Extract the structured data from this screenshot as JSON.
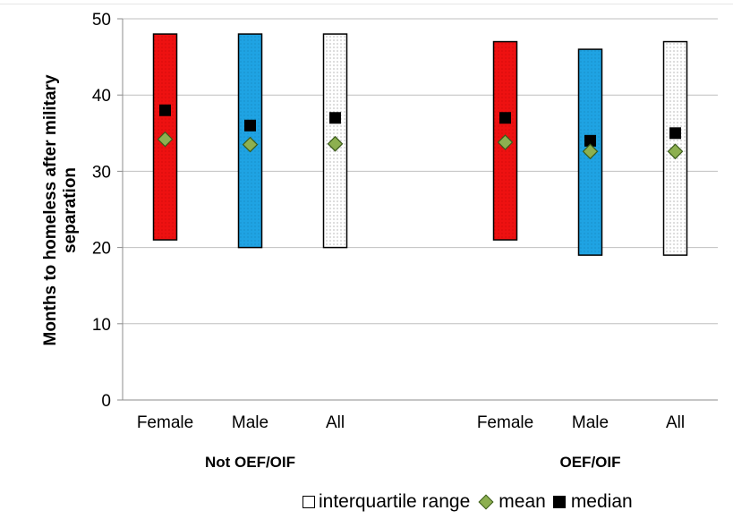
{
  "chart_data": {
    "type": "floating-bar",
    "ylabel_lines": [
      "Months to homeless after military",
      "separation"
    ],
    "xlabel": "",
    "ylim": [
      0,
      50
    ],
    "yticks": [
      0,
      10,
      20,
      30,
      40,
      50
    ],
    "grid": true,
    "legend_position": "bottom-right",
    "groups": [
      {
        "label": "Not OEF/OIF",
        "categories": [
          {
            "label": "Female",
            "q1": 21,
            "q3": 48,
            "mean": 34.2,
            "median": 38,
            "fill": "red"
          },
          {
            "label": "Male",
            "q1": 20,
            "q3": 48,
            "mean": 33.5,
            "median": 36,
            "fill": "blue"
          },
          {
            "label": "All",
            "q1": 20,
            "q3": 48,
            "mean": 33.6,
            "median": 37,
            "fill": "dotted"
          }
        ]
      },
      {
        "label": "OEF/OIF",
        "categories": [
          {
            "label": "Female",
            "q1": 21,
            "q3": 47,
            "mean": 33.8,
            "median": 37,
            "fill": "red"
          },
          {
            "label": "Male",
            "q1": 19,
            "q3": 46,
            "mean": 32.6,
            "median": 34,
            "fill": "blue"
          },
          {
            "label": "All",
            "q1": 19,
            "q3": 47,
            "mean": 32.6,
            "median": 35,
            "fill": "dotted"
          }
        ]
      }
    ],
    "legend": {
      "iqr": "interquartile range",
      "mean": "mean",
      "median": "median"
    },
    "colors": {
      "red": "#ee1111",
      "blue": "#1fa3e3",
      "dotted": "#ffffff",
      "mean": "#8db050",
      "median": "#000000",
      "grid": "#bfbfbf"
    }
  }
}
